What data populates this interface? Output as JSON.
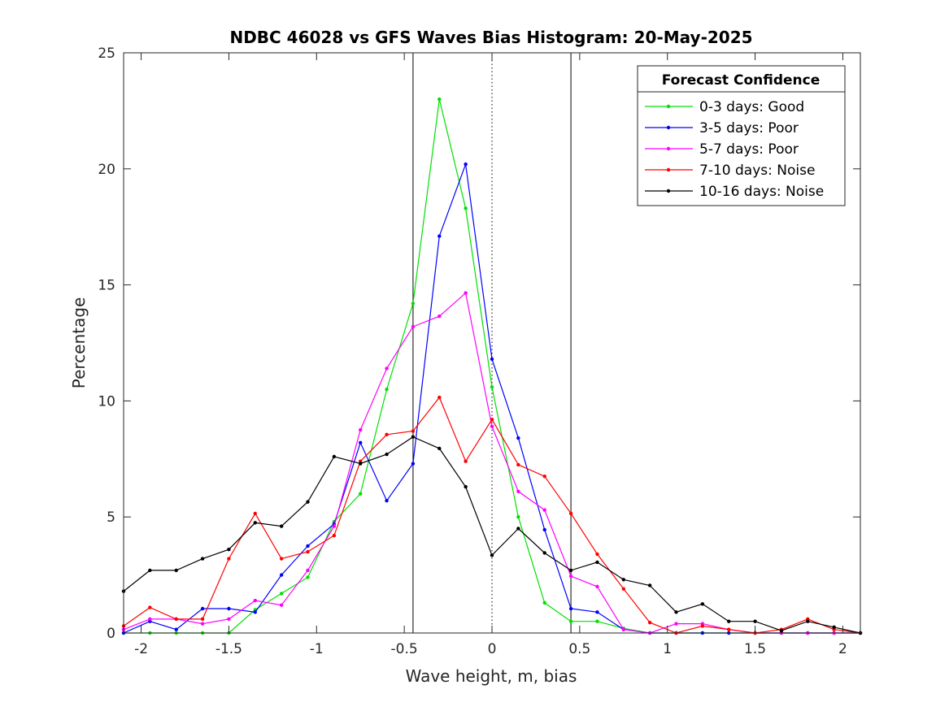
{
  "chart_data": {
    "type": "line",
    "title": "NDBC 46028 vs GFS Waves Bias Histogram: 20-May-2025",
    "xlabel": "Wave height, m, bias",
    "ylabel": "Percentage",
    "xlim": [
      -2.1,
      2.1
    ],
    "ylim": [
      0,
      25
    ],
    "xticks": [
      -2,
      -1.5,
      -1,
      -0.5,
      0,
      0.5,
      1,
      1.5,
      2
    ],
    "xtick_labels": [
      "-2",
      "-1.5",
      "-1",
      "-0.5",
      "0",
      "0.5",
      "1",
      "1.5",
      "2"
    ],
    "yticks": [
      0,
      5,
      10,
      15,
      20,
      25
    ],
    "ytick_labels": [
      "0",
      "5",
      "10",
      "15",
      "20",
      "25"
    ],
    "grid": false,
    "reference_lines": [
      {
        "x": -0.45,
        "style": "solid"
      },
      {
        "x": 0,
        "style": "dotted"
      },
      {
        "x": 0.45,
        "style": "solid"
      }
    ],
    "legend": {
      "title": "Forecast Confidence",
      "placement": "top-right"
    },
    "x": [
      -2.1,
      -1.95,
      -1.8,
      -1.65,
      -1.5,
      -1.35,
      -1.2,
      -1.05,
      -0.9,
      -0.75,
      -0.6,
      -0.45,
      -0.3,
      -0.15,
      0,
      0.15,
      0.3,
      0.45,
      0.6,
      0.75,
      0.9,
      1.05,
      1.2,
      1.35,
      1.5,
      1.65,
      1.8,
      1.95,
      2.1
    ],
    "series": [
      {
        "name": "0-3 days: Good",
        "color": "#00e000",
        "values": [
          0,
          0,
          0,
          0,
          0,
          1.0,
          1.7,
          2.4,
          4.8,
          6.0,
          10.5,
          14.2,
          23.0,
          18.3,
          10.6,
          5.0,
          1.3,
          0.5,
          0.5,
          0.2,
          0,
          0,
          0,
          0,
          0,
          0,
          0,
          0,
          0
        ]
      },
      {
        "name": "3-5 days: Poor",
        "color": "#0000ff",
        "values": [
          0,
          0.5,
          0.15,
          1.05,
          1.05,
          0.9,
          2.5,
          3.75,
          4.7,
          8.2,
          5.7,
          7.3,
          17.1,
          20.2,
          11.8,
          8.4,
          4.45,
          1.05,
          0.9,
          0.15,
          0,
          0,
          0,
          0,
          0,
          0,
          0,
          0,
          0
        ]
      },
      {
        "name": "5-7 days: Poor",
        "color": "#ff00ff",
        "values": [
          0.15,
          0.6,
          0.6,
          0.4,
          0.6,
          1.4,
          1.2,
          2.7,
          4.6,
          8.75,
          11.4,
          13.2,
          13.65,
          14.65,
          8.9,
          6.1,
          5.3,
          2.45,
          2.0,
          0.15,
          0,
          0.4,
          0.4,
          0.15,
          0,
          0,
          0,
          0,
          0
        ]
      },
      {
        "name": "7-10 days: Noise",
        "color": "#ff0000",
        "values": [
          0.3,
          1.1,
          0.6,
          0.6,
          3.2,
          5.15,
          3.2,
          3.5,
          4.2,
          7.4,
          8.55,
          8.7,
          10.15,
          7.4,
          9.2,
          7.25,
          6.75,
          5.15,
          3.4,
          1.9,
          0.45,
          0,
          0.3,
          0.15,
          0,
          0.15,
          0.6,
          0.15,
          0
        ]
      },
      {
        "name": "10-16 days: Noise",
        "color": "#000000",
        "values": [
          1.8,
          2.7,
          2.7,
          3.2,
          3.6,
          4.75,
          4.6,
          5.65,
          7.6,
          7.3,
          7.7,
          8.45,
          7.95,
          6.3,
          3.35,
          4.5,
          3.45,
          2.7,
          3.05,
          2.3,
          2.05,
          0.9,
          1.25,
          0.5,
          0.5,
          0.1,
          0.5,
          0.25,
          0
        ]
      }
    ]
  }
}
